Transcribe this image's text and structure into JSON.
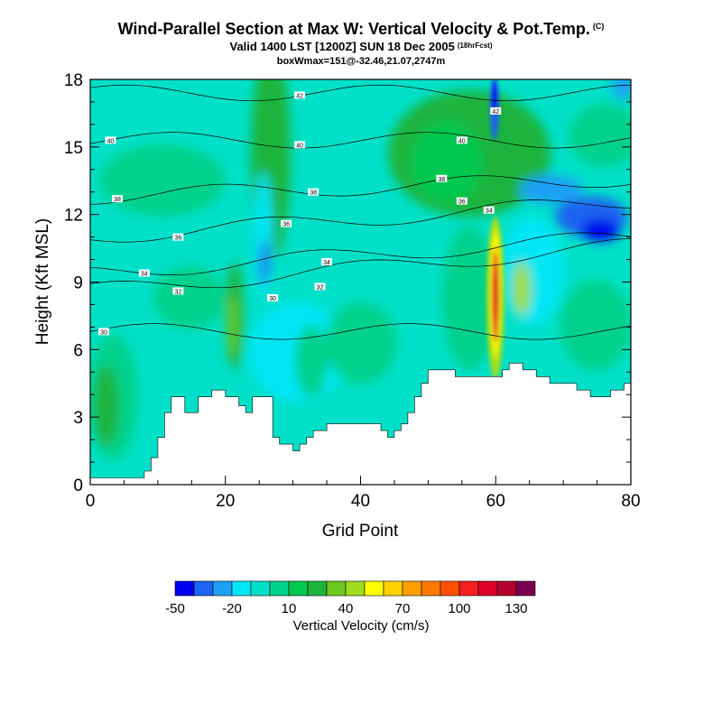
{
  "header": {
    "title": "Wind-Parallel Section at Max W: Vertical Velocity & Pot.Temp.",
    "title_mark": "(C)",
    "valid": "Valid 1400 LST [1200Z] SUN 18 Dec 2005",
    "valid_mark": "(18hrFcst)",
    "boxw": "boxWmax=151@-32.46,21.07,2747m"
  },
  "chart_data": {
    "type": "heatmap",
    "title": "Wind-Parallel Section at Max W: Vertical Velocity & Pot.Temp.",
    "xlabel": "Grid Point",
    "ylabel": "Height (Kft MSL)",
    "xlim": [
      0,
      80
    ],
    "ylim": [
      0,
      18
    ],
    "x_ticks": [
      "0",
      "20",
      "40",
      "60",
      "80"
    ],
    "y_ticks": [
      "0",
      "3",
      "6",
      "9",
      "12",
      "15",
      "18"
    ],
    "colorbar": {
      "label": "Vertical Velocity (cm/s)",
      "tick_labels": [
        "-50",
        "-20",
        "10",
        "40",
        "70",
        "100",
        "130"
      ],
      "levels": [
        -50,
        -40,
        -30,
        -20,
        -10,
        0,
        10,
        20,
        30,
        40,
        50,
        60,
        70,
        80,
        90,
        100,
        110,
        120,
        130,
        140
      ],
      "colors": [
        "#0000ee",
        "#1e64f0",
        "#1ea0f5",
        "#00e6f5",
        "#00e0c8",
        "#00d28c",
        "#00c850",
        "#1eb43c",
        "#6ec81e",
        "#a0dc1e",
        "#ffff00",
        "#ffd200",
        "#ffa000",
        "#ff7800",
        "#ff5000",
        "#f51e1e",
        "#dc0028",
        "#b4002d",
        "#780050"
      ]
    },
    "terrain_kft": [
      0.3,
      0.3,
      0.3,
      0.3,
      0.3,
      0.3,
      0.3,
      0.3,
      0.6,
      1.2,
      2.1,
      3.2,
      3.9,
      3.9,
      3.2,
      3.2,
      3.9,
      3.9,
      4.2,
      4.2,
      3.9,
      3.9,
      3.5,
      3.2,
      3.9,
      3.9,
      3.9,
      2.1,
      1.8,
      1.8,
      1.5,
      1.8,
      2.1,
      2.4,
      2.4,
      2.7,
      2.7,
      2.7,
      2.7,
      2.7,
      2.7,
      2.7,
      2.7,
      2.4,
      2.1,
      2.4,
      2.7,
      3.2,
      3.9,
      4.5,
      5.1,
      5.1,
      5.1,
      5.1,
      4.8,
      4.8,
      4.8,
      4.8,
      4.8,
      4.8,
      4.8,
      5.1,
      5.4,
      5.4,
      5.1,
      5.1,
      4.8,
      4.8,
      4.5,
      4.5,
      4.5,
      4.5,
      4.2,
      4.2,
      3.9,
      3.9,
      3.9,
      4.2,
      4.2,
      4.5,
      4.5
    ],
    "theta_contours_c": [
      {
        "label": "30",
        "base_kft": 6.8,
        "slope": 0.0
      },
      {
        "label": "32",
        "base_kft": 8.6,
        "slope": 0.025
      },
      {
        "label": "34",
        "base_kft": 9.4,
        "slope": 0.02
      },
      {
        "label": "36",
        "base_kft": 11.0,
        "slope": 0.02
      },
      {
        "label": "38",
        "base_kft": 12.8,
        "slope": 0.01
      },
      {
        "label": "40",
        "base_kft": 15.3,
        "slope": 0.0
      },
      {
        "label": "42",
        "base_kft": 17.4,
        "slope": 0.0
      }
    ],
    "updraft_max": {
      "x": 60,
      "y_range_kft": [
        5,
        13
      ],
      "value_cm_s": 151
    },
    "contour_labels": [
      {
        "text": "40",
        "x": 3,
        "y": 15.3
      },
      {
        "text": "38",
        "x": 4,
        "y": 12.7
      },
      {
        "text": "36",
        "x": 13,
        "y": 11.0
      },
      {
        "text": "34",
        "x": 8,
        "y": 9.4
      },
      {
        "text": "32",
        "x": 13,
        "y": 8.6
      },
      {
        "text": "30",
        "x": 2,
        "y": 6.8
      },
      {
        "text": "42",
        "x": 31,
        "y": 17.3
      },
      {
        "text": "40",
        "x": 31,
        "y": 15.1
      },
      {
        "text": "38",
        "x": 33,
        "y": 13.0
      },
      {
        "text": "36",
        "x": 29,
        "y": 11.6
      },
      {
        "text": "34",
        "x": 35,
        "y": 9.9
      },
      {
        "text": "32",
        "x": 34,
        "y": 8.8
      },
      {
        "text": "30",
        "x": 27,
        "y": 8.3
      },
      {
        "text": "40",
        "x": 55,
        "y": 15.3
      },
      {
        "text": "38",
        "x": 52,
        "y": 13.6
      },
      {
        "text": "36",
        "x": 55,
        "y": 12.6
      },
      {
        "text": "34",
        "x": 59,
        "y": 12.2
      },
      {
        "text": "42",
        "x": 60,
        "y": 16.6
      }
    ]
  }
}
